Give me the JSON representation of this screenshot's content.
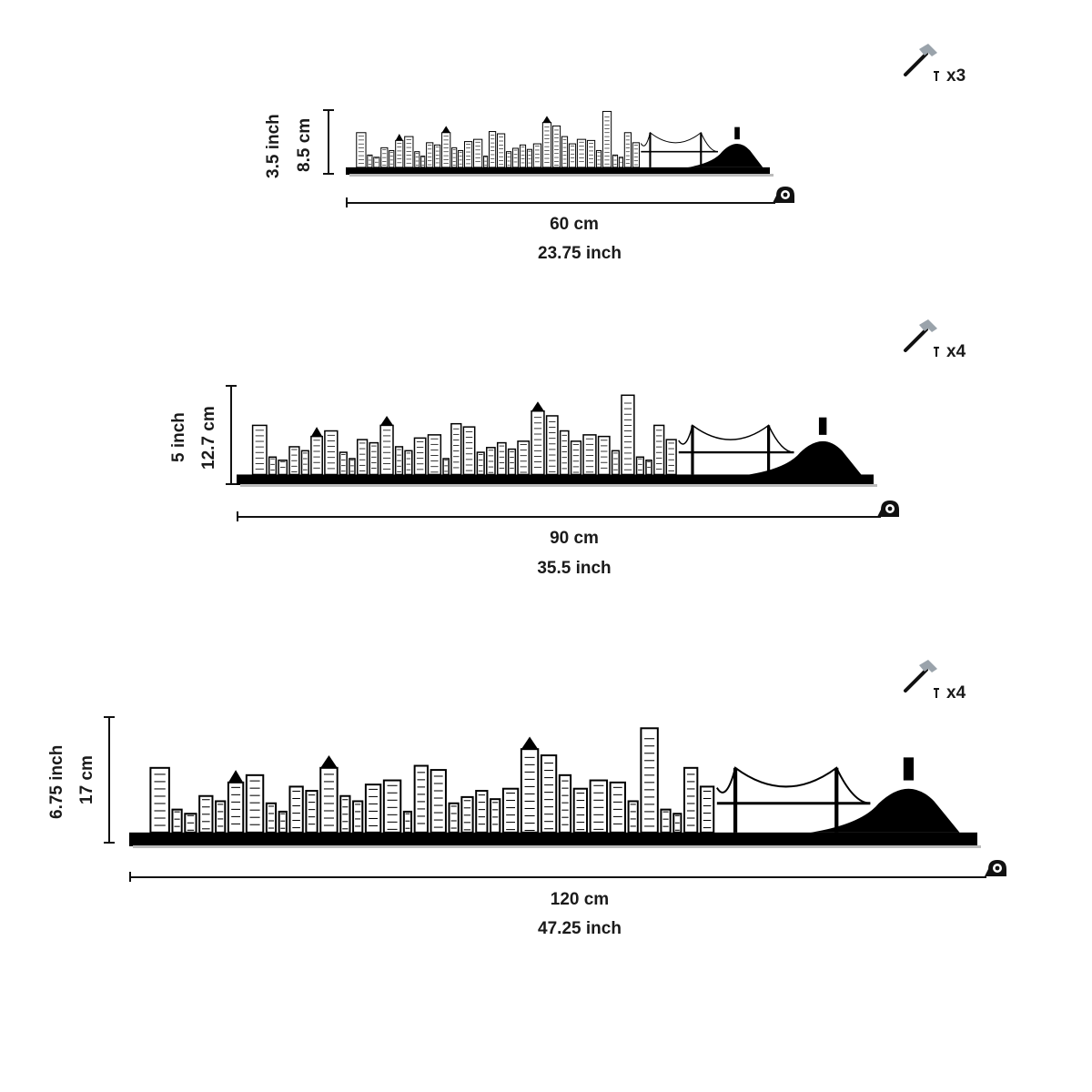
{
  "variants": [
    {
      "size": "small",
      "height_inch": "3.5 inch",
      "height_cm": "8.5 cm",
      "width_cm": "60 cm",
      "width_inch": "23.75 inch",
      "nail_count": "x3"
    },
    {
      "size": "medium",
      "height_inch": "5 inch",
      "height_cm": "12.7 cm",
      "width_cm": "90 cm",
      "width_inch": "35.5 inch",
      "nail_count": "x4"
    },
    {
      "size": "large",
      "height_inch": "6.75 inch",
      "height_cm": "17 cm",
      "width_cm": "120 cm",
      "width_inch": "47.25 inch",
      "nail_count": "x4"
    }
  ],
  "icons": {
    "hammer": "hammer-icon",
    "nail": "nail-icon",
    "tape": "tape-measure-icon"
  },
  "colors": {
    "silhouette": "#000000",
    "text": "#1a1a1a",
    "hammer_head": "#9aa3ab",
    "background": "#ffffff"
  }
}
